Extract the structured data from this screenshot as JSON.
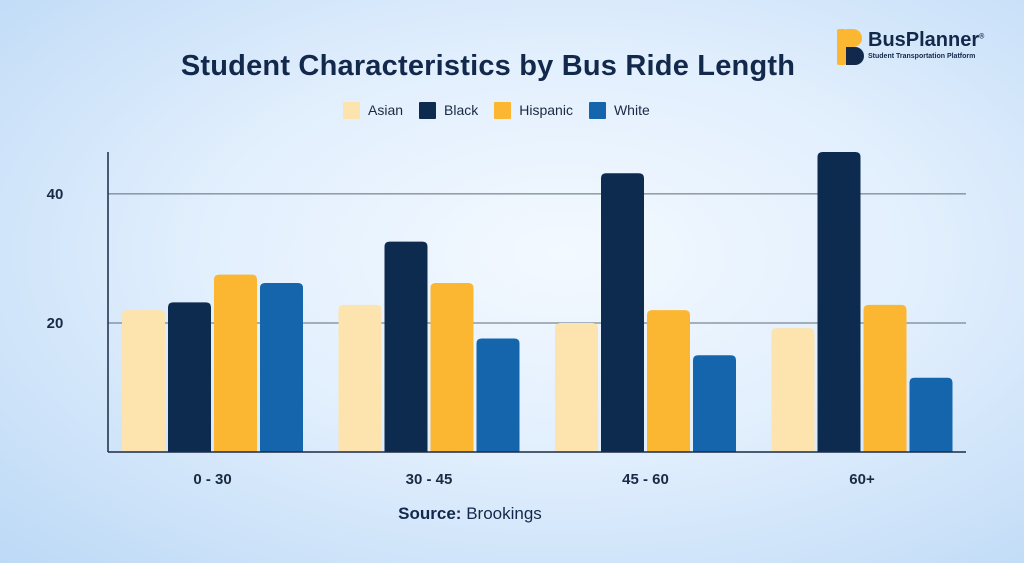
{
  "brand": {
    "name": "BusPlanner",
    "registered_mark": "®",
    "tagline": "Student Transportation Platform",
    "colors": {
      "yellow": "#fbb731",
      "navy": "#13294b"
    }
  },
  "source": {
    "label": "Source:",
    "text": "Brookings"
  },
  "chart_data": {
    "type": "bar",
    "title": "Student Characteristics by Bus Ride Length",
    "xlabel": "",
    "ylabel": "",
    "categories": [
      "0 - 30",
      "30 - 45",
      "45 - 60",
      "60+"
    ],
    "ylim": [
      0,
      46.5
    ],
    "yticks": [
      20,
      40
    ],
    "grid": true,
    "legend_position": "top-center",
    "series": [
      {
        "name": "Asian",
        "color": "#fde3ad",
        "values": [
          22,
          22.8,
          20,
          19.2
        ]
      },
      {
        "name": "Black",
        "color": "#0d2a4f",
        "values": [
          23.2,
          32.6,
          43.2,
          46.5
        ]
      },
      {
        "name": "Hispanic",
        "color": "#fbb731",
        "values": [
          27.5,
          26.2,
          22,
          22.8
        ]
      },
      {
        "name": "White",
        "color": "#1565ad",
        "values": [
          26.2,
          17.6,
          15,
          11.5
        ]
      }
    ]
  }
}
